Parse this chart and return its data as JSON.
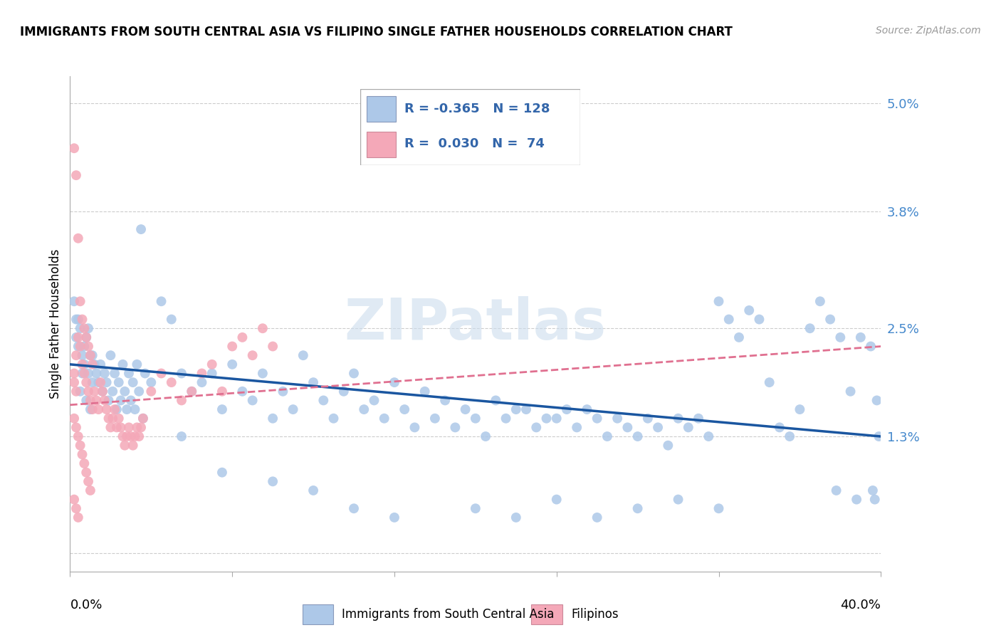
{
  "title": "IMMIGRANTS FROM SOUTH CENTRAL ASIA VS FILIPINO SINGLE FATHER HOUSEHOLDS CORRELATION CHART",
  "source": "Source: ZipAtlas.com",
  "ylabel": "Single Father Households",
  "ytick_vals": [
    0.0,
    1.3,
    2.5,
    3.8,
    5.0
  ],
  "ytick_labels": [
    "",
    "1.3%",
    "2.5%",
    "3.8%",
    "5.0%"
  ],
  "xmin": 0.0,
  "xmax": 40.0,
  "ymin": -0.2,
  "ymax": 5.3,
  "blue_color": "#adc8e8",
  "pink_color": "#f4a8b8",
  "blue_line_color": "#1a56a0",
  "pink_line_color": "#e07090",
  "watermark": "ZIPatlas",
  "blue_scatter": [
    [
      0.3,
      2.6
    ],
    [
      0.5,
      2.5
    ],
    [
      0.4,
      2.3
    ],
    [
      0.6,
      2.2
    ],
    [
      0.7,
      2.1
    ],
    [
      0.8,
      2.4
    ],
    [
      0.9,
      2.0
    ],
    [
      1.0,
      2.2
    ],
    [
      1.1,
      1.9
    ],
    [
      1.2,
      2.1
    ],
    [
      0.2,
      2.8
    ],
    [
      0.3,
      2.4
    ],
    [
      0.4,
      2.6
    ],
    [
      0.5,
      1.8
    ],
    [
      0.6,
      2.0
    ],
    [
      0.7,
      2.3
    ],
    [
      0.8,
      1.7
    ],
    [
      0.9,
      2.5
    ],
    [
      1.0,
      1.6
    ],
    [
      1.1,
      2.2
    ],
    [
      1.3,
      2.0
    ],
    [
      1.4,
      1.9
    ],
    [
      1.5,
      2.1
    ],
    [
      1.6,
      1.8
    ],
    [
      1.7,
      2.0
    ],
    [
      1.8,
      1.9
    ],
    [
      1.9,
      1.7
    ],
    [
      2.0,
      2.2
    ],
    [
      2.1,
      1.8
    ],
    [
      2.2,
      2.0
    ],
    [
      2.3,
      1.6
    ],
    [
      2.4,
      1.9
    ],
    [
      2.5,
      1.7
    ],
    [
      2.6,
      2.1
    ],
    [
      2.7,
      1.8
    ],
    [
      2.8,
      1.6
    ],
    [
      2.9,
      2.0
    ],
    [
      3.0,
      1.7
    ],
    [
      3.1,
      1.9
    ],
    [
      3.2,
      1.6
    ],
    [
      3.3,
      2.1
    ],
    [
      3.4,
      1.8
    ],
    [
      3.5,
      3.6
    ],
    [
      3.6,
      1.5
    ],
    [
      3.7,
      2.0
    ],
    [
      4.0,
      1.9
    ],
    [
      4.5,
      2.8
    ],
    [
      5.0,
      2.6
    ],
    [
      5.5,
      2.0
    ],
    [
      6.0,
      1.8
    ],
    [
      6.5,
      1.9
    ],
    [
      7.0,
      2.0
    ],
    [
      7.5,
      1.6
    ],
    [
      8.0,
      2.1
    ],
    [
      8.5,
      1.8
    ],
    [
      9.0,
      1.7
    ],
    [
      9.5,
      2.0
    ],
    [
      10.0,
      1.5
    ],
    [
      10.5,
      1.8
    ],
    [
      11.0,
      1.6
    ],
    [
      11.5,
      2.2
    ],
    [
      12.0,
      1.9
    ],
    [
      12.5,
      1.7
    ],
    [
      13.0,
      1.5
    ],
    [
      13.5,
      1.8
    ],
    [
      14.0,
      2.0
    ],
    [
      14.5,
      1.6
    ],
    [
      15.0,
      1.7
    ],
    [
      15.5,
      1.5
    ],
    [
      16.0,
      1.9
    ],
    [
      16.5,
      1.6
    ],
    [
      17.0,
      1.4
    ],
    [
      17.5,
      1.8
    ],
    [
      18.0,
      1.5
    ],
    [
      18.5,
      1.7
    ],
    [
      19.0,
      1.4
    ],
    [
      19.5,
      1.6
    ],
    [
      20.0,
      1.5
    ],
    [
      20.5,
      1.3
    ],
    [
      21.0,
      1.7
    ],
    [
      21.5,
      1.5
    ],
    [
      22.0,
      1.6
    ],
    [
      22.5,
      1.6
    ],
    [
      23.0,
      1.4
    ],
    [
      23.5,
      1.5
    ],
    [
      24.0,
      1.5
    ],
    [
      24.5,
      1.6
    ],
    [
      25.0,
      1.4
    ],
    [
      25.5,
      1.6
    ],
    [
      26.0,
      1.5
    ],
    [
      26.5,
      1.3
    ],
    [
      27.0,
      1.5
    ],
    [
      27.5,
      1.4
    ],
    [
      28.0,
      1.3
    ],
    [
      28.5,
      1.5
    ],
    [
      29.0,
      1.4
    ],
    [
      29.5,
      1.2
    ],
    [
      30.0,
      1.5
    ],
    [
      30.5,
      1.4
    ],
    [
      31.0,
      1.5
    ],
    [
      31.5,
      1.3
    ],
    [
      32.0,
      2.8
    ],
    [
      32.5,
      2.6
    ],
    [
      33.0,
      2.4
    ],
    [
      33.5,
      2.7
    ],
    [
      34.0,
      2.6
    ],
    [
      34.5,
      1.9
    ],
    [
      35.0,
      1.4
    ],
    [
      35.5,
      1.3
    ],
    [
      36.0,
      1.6
    ],
    [
      36.5,
      2.5
    ],
    [
      37.0,
      2.8
    ],
    [
      37.5,
      2.6
    ],
    [
      38.0,
      2.4
    ],
    [
      38.5,
      1.8
    ],
    [
      39.0,
      2.4
    ],
    [
      39.5,
      2.3
    ],
    [
      39.8,
      1.7
    ],
    [
      39.9,
      1.3
    ],
    [
      39.7,
      0.6
    ],
    [
      39.6,
      0.7
    ],
    [
      38.8,
      0.6
    ],
    [
      37.8,
      0.7
    ],
    [
      5.5,
      1.3
    ],
    [
      7.5,
      0.9
    ],
    [
      10.0,
      0.8
    ],
    [
      12.0,
      0.7
    ],
    [
      14.0,
      0.5
    ],
    [
      16.0,
      0.4
    ],
    [
      20.0,
      0.5
    ],
    [
      22.0,
      0.4
    ],
    [
      24.0,
      0.6
    ],
    [
      26.0,
      0.4
    ],
    [
      28.0,
      0.5
    ],
    [
      30.0,
      0.6
    ],
    [
      32.0,
      0.5
    ]
  ],
  "pink_scatter": [
    [
      0.2,
      4.5
    ],
    [
      0.3,
      4.2
    ],
    [
      0.4,
      3.5
    ],
    [
      0.5,
      2.8
    ],
    [
      0.6,
      2.6
    ],
    [
      0.7,
      2.5
    ],
    [
      0.8,
      2.4
    ],
    [
      0.9,
      2.3
    ],
    [
      1.0,
      2.2
    ],
    [
      1.1,
      2.1
    ],
    [
      0.2,
      2.0
    ],
    [
      0.3,
      2.2
    ],
    [
      0.4,
      2.4
    ],
    [
      0.5,
      2.3
    ],
    [
      0.6,
      2.1
    ],
    [
      0.7,
      2.0
    ],
    [
      0.8,
      1.9
    ],
    [
      0.9,
      1.8
    ],
    [
      1.0,
      1.7
    ],
    [
      1.1,
      1.6
    ],
    [
      0.2,
      1.5
    ],
    [
      0.3,
      1.4
    ],
    [
      0.4,
      1.3
    ],
    [
      0.5,
      1.2
    ],
    [
      0.6,
      1.1
    ],
    [
      0.7,
      1.0
    ],
    [
      0.8,
      0.9
    ],
    [
      0.9,
      0.8
    ],
    [
      1.0,
      0.7
    ],
    [
      0.2,
      0.6
    ],
    [
      0.3,
      0.5
    ],
    [
      0.4,
      0.4
    ],
    [
      1.2,
      1.8
    ],
    [
      1.3,
      1.7
    ],
    [
      1.4,
      1.6
    ],
    [
      1.5,
      1.9
    ],
    [
      1.6,
      1.8
    ],
    [
      1.7,
      1.7
    ],
    [
      1.8,
      1.6
    ],
    [
      1.9,
      1.5
    ],
    [
      2.0,
      1.4
    ],
    [
      2.1,
      1.5
    ],
    [
      2.2,
      1.6
    ],
    [
      2.3,
      1.4
    ],
    [
      2.4,
      1.5
    ],
    [
      2.5,
      1.4
    ],
    [
      2.6,
      1.3
    ],
    [
      2.7,
      1.2
    ],
    [
      2.8,
      1.3
    ],
    [
      2.9,
      1.4
    ],
    [
      3.0,
      1.3
    ],
    [
      3.1,
      1.2
    ],
    [
      3.2,
      1.3
    ],
    [
      3.3,
      1.4
    ],
    [
      3.4,
      1.3
    ],
    [
      3.5,
      1.4
    ],
    [
      3.6,
      1.5
    ],
    [
      4.0,
      1.8
    ],
    [
      4.5,
      2.0
    ],
    [
      5.0,
      1.9
    ],
    [
      5.5,
      1.7
    ],
    [
      6.0,
      1.8
    ],
    [
      6.5,
      2.0
    ],
    [
      7.0,
      2.1
    ],
    [
      7.5,
      1.8
    ],
    [
      8.0,
      2.3
    ],
    [
      8.5,
      2.4
    ],
    [
      9.0,
      2.2
    ],
    [
      9.5,
      2.5
    ],
    [
      10.0,
      2.3
    ],
    [
      0.2,
      1.9
    ],
    [
      0.3,
      1.8
    ]
  ]
}
